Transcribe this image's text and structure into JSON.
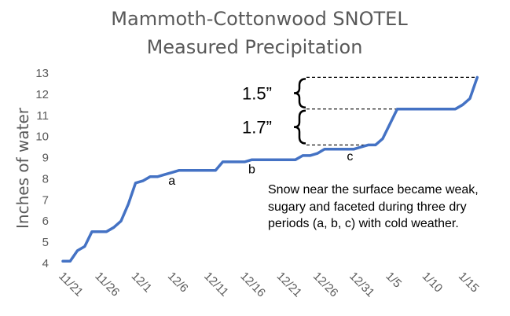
{
  "chart_data": {
    "type": "line",
    "title_lines": [
      "Mammoth-Cottonwood SNOTEL",
      "Measured Precipitation"
    ],
    "xlabel": "",
    "ylabel": "Inches of water",
    "ylim": [
      4,
      13
    ],
    "yticks": [
      4,
      5,
      6,
      7,
      8,
      9,
      10,
      11,
      12,
      13
    ],
    "grid": false,
    "x_tick_labels": [
      "11/21",
      "11/26",
      "12/1",
      "12/6",
      "12/11",
      "12/16",
      "12/21",
      "12/26",
      "12/31",
      "1/5",
      "1/10",
      "1/15"
    ],
    "x_tick_day_index": [
      0,
      5,
      10,
      15,
      20,
      25,
      30,
      35,
      40,
      45,
      50,
      55
    ],
    "series": [
      {
        "color": "#4472C4",
        "day_index": [
          0,
          1,
          2,
          3,
          4,
          5,
          6,
          7,
          8,
          9,
          10,
          11,
          12,
          13,
          14,
          15,
          16,
          17,
          18,
          19,
          20,
          21,
          22,
          23,
          24,
          25,
          26,
          27,
          28,
          29,
          30,
          31,
          32,
          33,
          34,
          35,
          36,
          37,
          38,
          39,
          40,
          41,
          42,
          43,
          44,
          45,
          46,
          47,
          48,
          49,
          50,
          51,
          52,
          53,
          54,
          55,
          56,
          57
        ],
        "values": [
          4.1,
          4.1,
          4.6,
          4.8,
          5.5,
          5.5,
          5.5,
          5.7,
          6.0,
          6.8,
          7.8,
          7.9,
          8.1,
          8.1,
          8.2,
          8.3,
          8.4,
          8.4,
          8.4,
          8.4,
          8.4,
          8.4,
          8.8,
          8.8,
          8.8,
          8.8,
          8.9,
          8.9,
          8.9,
          8.9,
          8.9,
          8.9,
          8.9,
          9.1,
          9.1,
          9.2,
          9.4,
          9.4,
          9.4,
          9.4,
          9.4,
          9.5,
          9.6,
          9.6,
          9.9,
          10.6,
          11.3,
          11.3,
          11.3,
          11.3,
          11.3,
          11.3,
          11.3,
          11.3,
          11.3,
          11.5,
          11.8,
          12.8
        ]
      }
    ],
    "point_labels": [
      {
        "text": "a",
        "day_index": 15,
        "value": 7.9
      },
      {
        "text": "b",
        "day_index": 26,
        "value": 8.45
      },
      {
        "text": "c",
        "day_index": 39.5,
        "value": 9.05
      }
    ],
    "brackets": [
      {
        "label": "1.5”",
        "from": 11.3,
        "to": 12.8
      },
      {
        "label": "1.7”",
        "from": 9.6,
        "to": 11.3
      }
    ],
    "annotation_text": "Snow near the surface became weak, sugary and faceted during three dry periods (a, b, c) with cold weather."
  }
}
